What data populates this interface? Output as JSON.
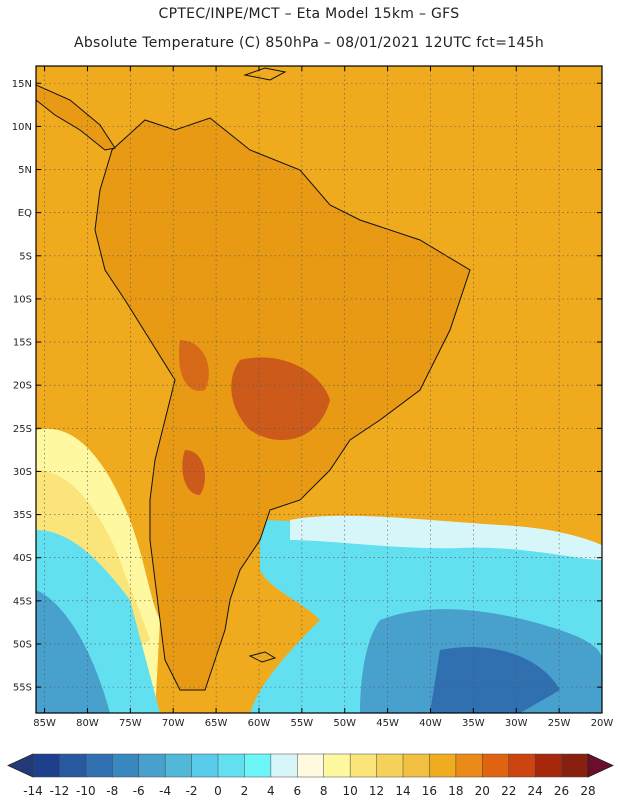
{
  "header": {
    "line1": "CPTEC/INPE/MCT –  Eta Model 15km – GFS",
    "line2": "Absolute Temperature (C) 850hPa – 08/01/2021 12UTC fct=145h"
  },
  "map": {
    "lat_labels": [
      "15N",
      "10N",
      "5N",
      "EQ",
      "5S",
      "10S",
      "15S",
      "20S",
      "25S",
      "30S",
      "35S",
      "40S",
      "45S",
      "50S",
      "55S"
    ],
    "lon_labels": [
      "85W",
      "80W",
      "75W",
      "70W",
      "65W",
      "60W",
      "55W",
      "50W",
      "45W",
      "40W",
      "35W",
      "30W",
      "25W",
      "20W"
    ],
    "lat_range": [
      17,
      -58
    ],
    "lon_range": [
      -86,
      -20
    ],
    "ocean_color": "#f0aa1e",
    "land_color": "#e89a14",
    "hot_core_color": "#c9571a"
  },
  "colorbar": {
    "labels": [
      "-14",
      "-12",
      "-10",
      "-8",
      "-6",
      "-4",
      "-2",
      "0",
      "2",
      "4",
      "6",
      "8",
      "10",
      "12",
      "14",
      "16",
      "18",
      "20",
      "22",
      "24",
      "26",
      "28"
    ],
    "colors": [
      "#1e3f8c",
      "#2858a0",
      "#3070b0",
      "#3a88c0",
      "#48a0cc",
      "#52b8d8",
      "#58ccea",
      "#62e0f0",
      "#6cf6f8",
      "#d6f6fa",
      "#fff9e0",
      "#fef8a0",
      "#fbe47a",
      "#f6d25a",
      "#f2c040",
      "#f0ac20",
      "#ea8a18",
      "#e06410",
      "#cc4410",
      "#a8280c",
      "#882010"
    ],
    "left_arrow_color": "#223a7a",
    "right_arrow_color": "#6a0e2c"
  }
}
